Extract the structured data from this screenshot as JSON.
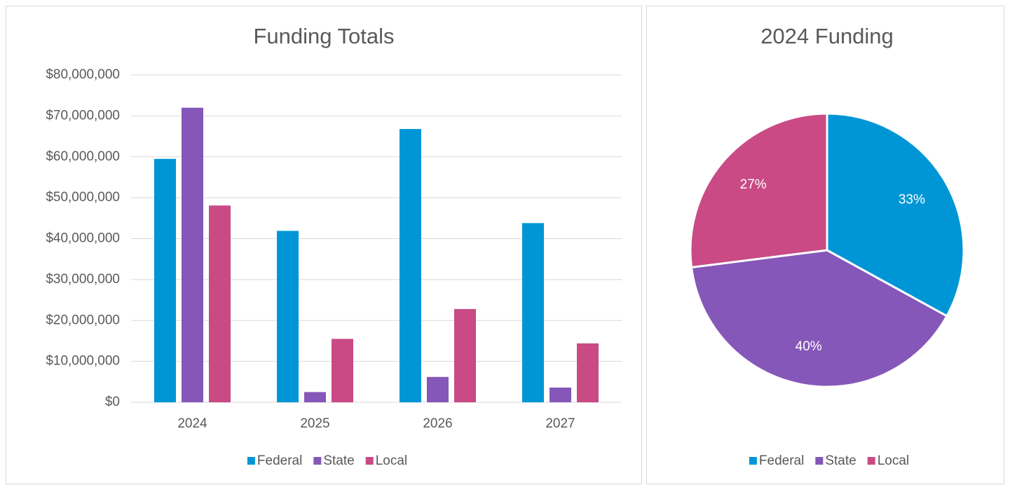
{
  "chart_data": [
    {
      "type": "bar",
      "title": "Funding Totals",
      "categories": [
        "2024",
        "2025",
        "2026",
        "2027"
      ],
      "series": [
        {
          "name": "Federal",
          "color": "#0096d6",
          "values": [
            59500000,
            41900000,
            66800000,
            43800000
          ]
        },
        {
          "name": "State",
          "color": "#8557b8",
          "values": [
            72000000,
            2500000,
            6200000,
            3600000
          ]
        },
        {
          "name": "Local",
          "color": "#c94a84",
          "values": [
            48100000,
            15500000,
            22800000,
            14400000
          ]
        }
      ],
      "ylim": [
        0,
        80000000
      ],
      "yticks": [
        {
          "value": 0,
          "label": "$0"
        },
        {
          "value": 10000000,
          "label": "$10,000,000"
        },
        {
          "value": 20000000,
          "label": "$20,000,000"
        },
        {
          "value": 30000000,
          "label": "$30,000,000"
        },
        {
          "value": 40000000,
          "label": "$40,000,000"
        },
        {
          "value": 50000000,
          "label": "$50,000,000"
        },
        {
          "value": 60000000,
          "label": "$60,000,000"
        },
        {
          "value": 70000000,
          "label": "$70,000,000"
        },
        {
          "value": 80000000,
          "label": "$80,000,000"
        }
      ],
      "grid": true,
      "legend": "bottom"
    },
    {
      "type": "pie",
      "title": "2024 Funding",
      "categories": [
        "Federal",
        "State",
        "Local"
      ],
      "values": [
        33,
        40,
        27
      ],
      "value_labels": [
        "33%",
        "40%",
        "27%"
      ],
      "colors": [
        "#0096d6",
        "#8557b8",
        "#c94a84"
      ],
      "legend": "bottom"
    }
  ]
}
